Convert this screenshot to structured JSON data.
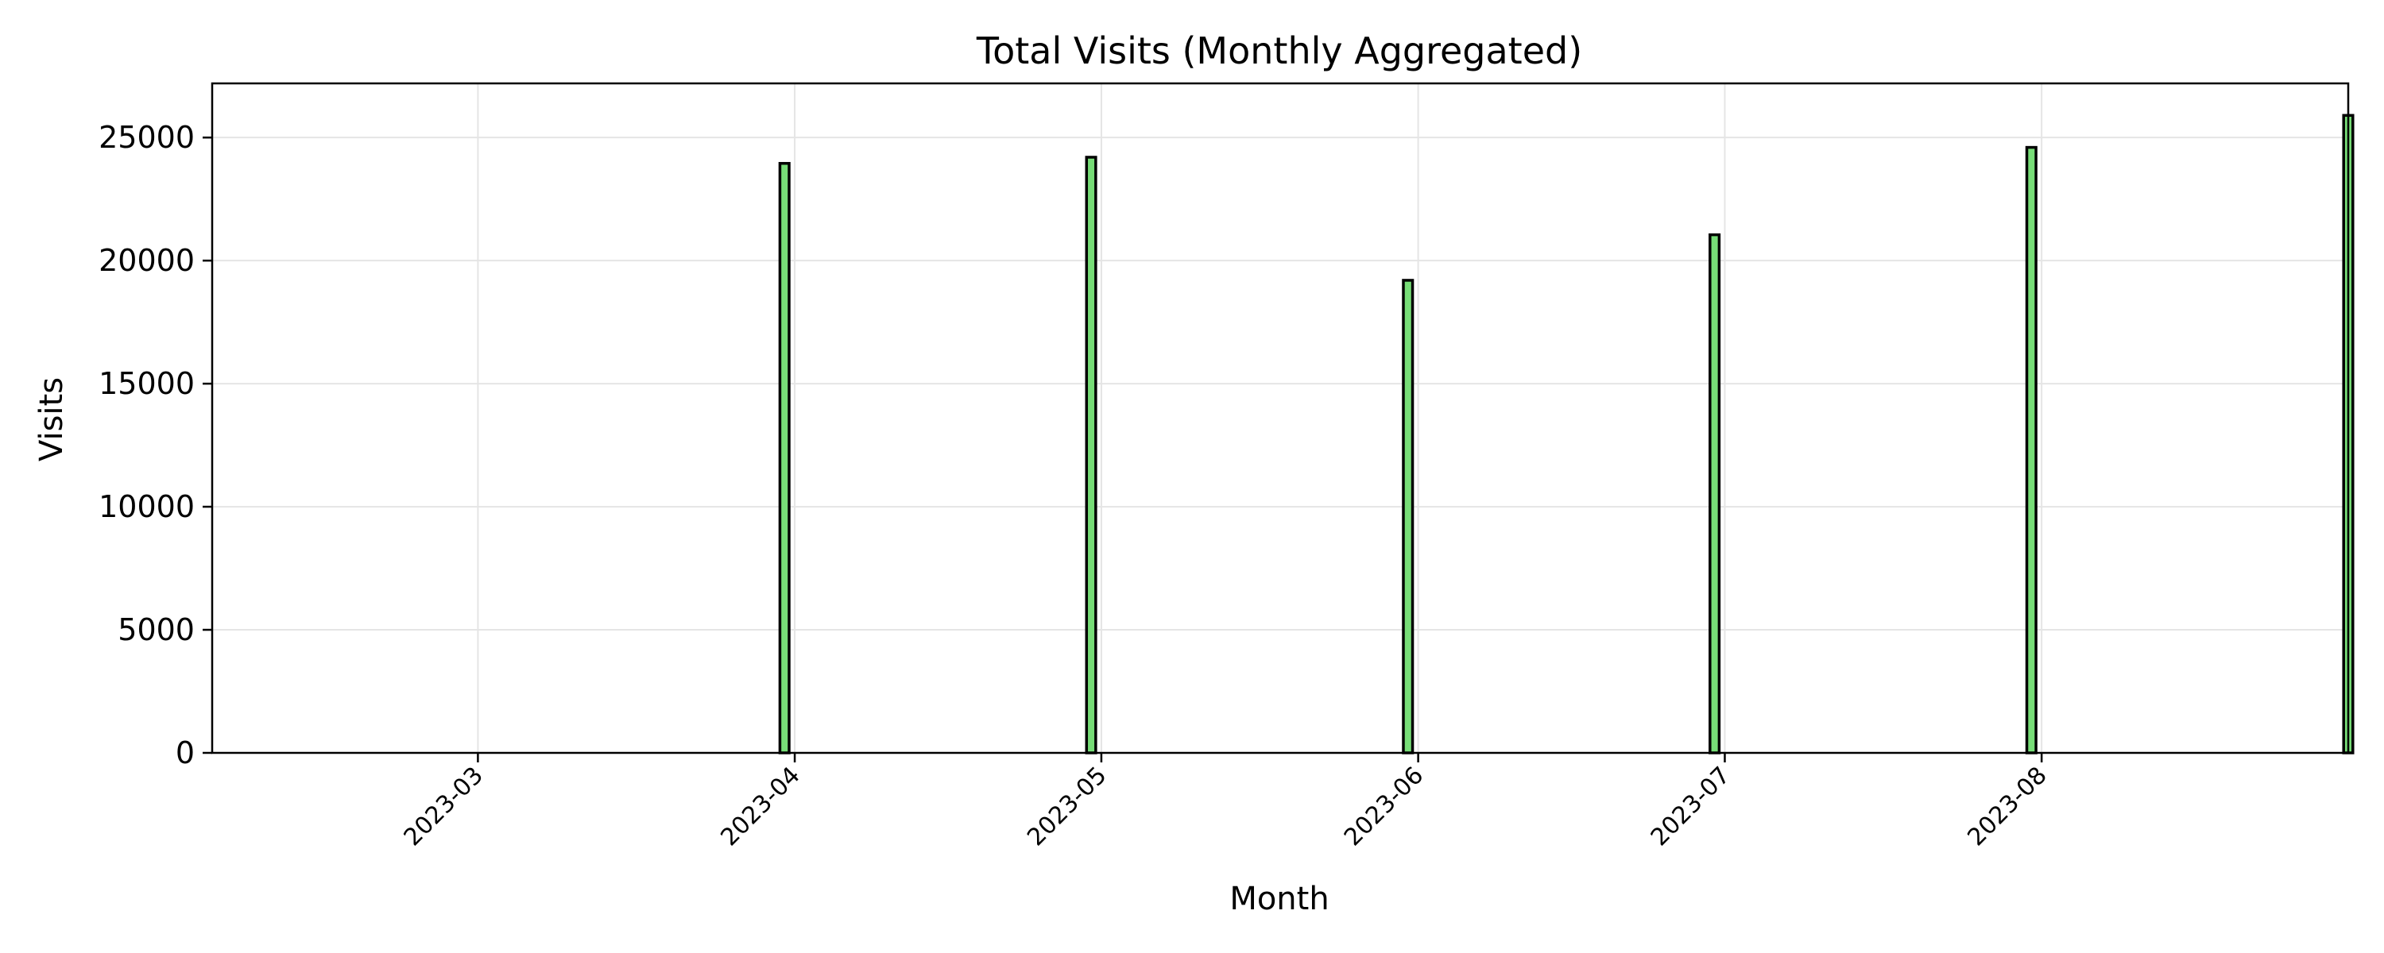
{
  "chart_data": {
    "type": "bar",
    "title": "Total Visits (Monthly Aggregated)",
    "xlabel": "Month",
    "ylabel": "Visits",
    "categories": [
      "2023-03-31",
      "2023-04-30",
      "2023-05-31",
      "2023-06-30",
      "2023-07-31",
      "2023-08-31"
    ],
    "x_tick_labels": [
      "2023-03",
      "2023-04",
      "2023-05",
      "2023-06",
      "2023-07",
      "2023-08"
    ],
    "x_ticks": [
      "2023-03-01",
      "2023-04-01",
      "2023-05-01",
      "2023-06-01",
      "2023-07-01",
      "2023-08-01"
    ],
    "xlim": [
      "2023-02-03",
      "2023-08-31"
    ],
    "values": [
      23950,
      24200,
      19200,
      21050,
      24600,
      25900
    ],
    "ylim": [
      0,
      27200
    ],
    "y_ticks": [
      0,
      5000,
      10000,
      15000,
      20000,
      25000
    ],
    "y_tick_labels": [
      "0",
      "5000",
      "10000",
      "15000",
      "20000",
      "25000"
    ],
    "grid": true,
    "colors": {
      "bar_fill": "#77dd77",
      "bar_edge": "#000000",
      "grid": "#e5e5e5",
      "axes": "#000000"
    }
  }
}
